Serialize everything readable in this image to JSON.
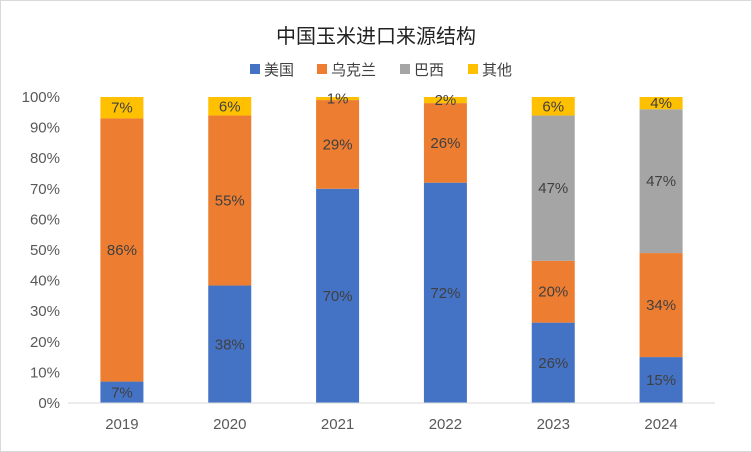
{
  "chart_data": {
    "type": "bar",
    "stacked": true,
    "title": "中国玉米进口来源结构",
    "categories": [
      "2019",
      "2020",
      "2021",
      "2022",
      "2023",
      "2024"
    ],
    "series": [
      {
        "name": "美国",
        "color": "#4472c4",
        "values": [
          7,
          38,
          70,
          72,
          26,
          15
        ],
        "labels": [
          "7%",
          "38%",
          "70%",
          "72%",
          "26%",
          "15%"
        ]
      },
      {
        "name": "乌克兰",
        "color": "#ed7d31",
        "values": [
          86,
          55,
          29,
          26,
          20,
          34
        ],
        "labels": [
          "86%",
          "55%",
          "29%",
          "26%",
          "20%",
          "34%"
        ]
      },
      {
        "name": "巴西",
        "color": "#a5a5a5",
        "values": [
          0,
          0,
          0,
          0,
          47,
          47
        ],
        "labels": [
          "",
          "",
          "",
          "",
          "47%",
          "47%"
        ]
      },
      {
        "name": "其他",
        "color": "#ffc000",
        "values": [
          7,
          6,
          1,
          2,
          6,
          4
        ],
        "labels": [
          "7%",
          "6%",
          "1%",
          "2%",
          "6%",
          "4%"
        ]
      }
    ],
    "yticks": [
      "0%",
      "10%",
      "20%",
      "30%",
      "40%",
      "50%",
      "60%",
      "70%",
      "80%",
      "90%",
      "100%"
    ],
    "ylim": [
      0,
      100
    ],
    "grid": false,
    "legend_position": "top"
  }
}
